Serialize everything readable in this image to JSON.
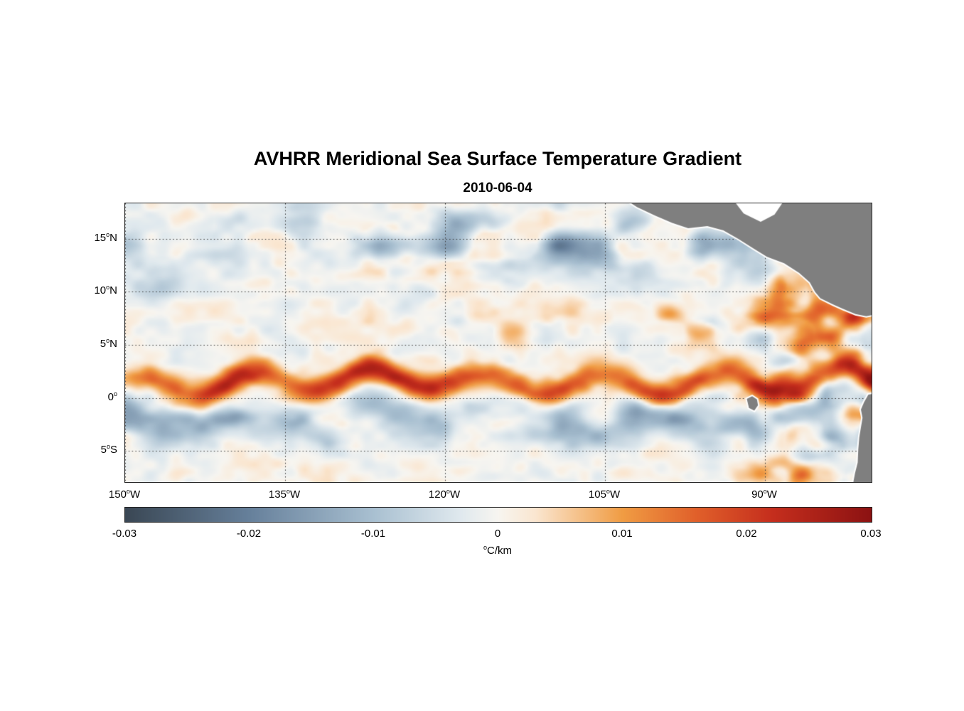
{
  "chart_data": {
    "type": "heatmap",
    "title": "AVHRR Meridional Sea Surface Temperature Gradient",
    "date": "2010-06-04",
    "degree_sup": "o",
    "lat_range": [
      -7.95,
      18.35
    ],
    "lon_range_W": [
      150,
      80
    ],
    "grid": "dotted",
    "y_ticks": [
      {
        "label": "15",
        "suffix": "N",
        "lat": 15
      },
      {
        "label": "10",
        "suffix": "N",
        "lat": 10
      },
      {
        "label": "5",
        "suffix": "N",
        "lat": 5
      },
      {
        "label": "0",
        "suffix": "",
        "lat": 0
      },
      {
        "label": "5",
        "suffix": "S",
        "lat": -5
      }
    ],
    "x_ticks": [
      {
        "label": "150",
        "suffix": "W",
        "lonW": 150
      },
      {
        "label": "135",
        "suffix": "W",
        "lonW": 135
      },
      {
        "label": "120",
        "suffix": "W",
        "lonW": 120
      },
      {
        "label": "105",
        "suffix": "W",
        "lonW": 105
      },
      {
        "label": "90",
        "suffix": "W",
        "lonW": 90
      }
    ],
    "colorbar": {
      "min": -0.03,
      "max": 0.03,
      "ticks": [
        "-0.03",
        "-0.02",
        "-0.01",
        "0",
        "0.01",
        "0.02",
        "0.03"
      ],
      "tick_values": [
        -0.03,
        -0.02,
        -0.01,
        0,
        0.01,
        0.02,
        0.03
      ],
      "unit_sup": "o",
      "unit_text": "C/km"
    },
    "colormap_stops": [
      {
        "v": -0.03,
        "c": "#3a4754"
      },
      {
        "v": -0.02,
        "c": "#66809b"
      },
      {
        "v": -0.01,
        "c": "#a9c0d1"
      },
      {
        "v": -0.003,
        "c": "#e0e9ee"
      },
      {
        "v": 0.0,
        "c": "#f7f5f0"
      },
      {
        "v": 0.003,
        "c": "#fae6d0"
      },
      {
        "v": 0.01,
        "c": "#f09c43"
      },
      {
        "v": 0.016,
        "c": "#e05f2a"
      },
      {
        "v": 0.022,
        "c": "#c52e1d"
      },
      {
        "v": 0.03,
        "c": "#8c1212"
      }
    ],
    "land_color": "#7f7f7f",
    "coast_halo_color": "#ffffff",
    "field_model": {
      "background": {
        "amp": 0.0035,
        "fine_amp": 0.0018
      },
      "equatorial_front": {
        "lat_center": 1.4,
        "meander_amp": 1.0,
        "meander_wavelength_deg": 11,
        "width_deg": 0.85,
        "peak": 0.027
      },
      "south_equatorial_band": {
        "lat_center": -2.1,
        "width_deg": 1.4,
        "peak": -0.014
      },
      "north_negative_patches": {
        "lat_center": 14.5,
        "width_deg": 2.4,
        "peak": -0.016
      },
      "necc_positive_patches": {
        "lat_center": 7.2,
        "width_deg": 1.6,
        "peak": 0.009,
        "east_of_lonW": 122
      },
      "eastern_mottle": {
        "west_of_lonW": 96,
        "amp": 0.012,
        "positive_boost": 0.006
      }
    },
    "land_polygons": {
      "central_america": [
        [
          19.5,
          104.3
        ],
        [
          18.0,
          102.0
        ],
        [
          17.2,
          100.3
        ],
        [
          16.5,
          98.7
        ],
        [
          16.0,
          97.2
        ],
        [
          16.2,
          95.4
        ],
        [
          15.8,
          93.9
        ],
        [
          15.0,
          92.5
        ],
        [
          14.1,
          91.1
        ],
        [
          13.3,
          89.8
        ],
        [
          12.7,
          88.2
        ],
        [
          11.8,
          86.8
        ],
        [
          10.9,
          85.8
        ],
        [
          10.0,
          85.3
        ],
        [
          9.4,
          84.8
        ],
        [
          8.8,
          83.6
        ],
        [
          8.4,
          82.7
        ],
        [
          7.9,
          81.5
        ],
        [
          7.7,
          80.5
        ],
        [
          8.1,
          78.5
        ],
        [
          19.5,
          78.5
        ]
      ],
      "caribbean_gap": [
        [
          19.5,
          93.6
        ],
        [
          17.4,
          92.0
        ],
        [
          16.6,
          90.4
        ],
        [
          17.3,
          89.1
        ],
        [
          19.5,
          87.6
        ]
      ],
      "galapagos": [
        [
          -0.1,
          91.7
        ],
        [
          0.15,
          91.2
        ],
        [
          -0.15,
          90.75
        ],
        [
          -0.7,
          90.65
        ],
        [
          -1.2,
          91.0
        ],
        [
          -0.95,
          91.5
        ]
      ],
      "south_america": [
        [
          0.6,
          78.5
        ],
        [
          0.3,
          80.3
        ],
        [
          -0.4,
          80.7
        ],
        [
          -1.1,
          81.0
        ],
        [
          -1.9,
          80.85
        ],
        [
          -2.8,
          81.0
        ],
        [
          -3.7,
          81.15
        ],
        [
          -4.9,
          81.25
        ],
        [
          -6.1,
          81.3
        ],
        [
          -7.1,
          81.55
        ],
        [
          -9.5,
          82.0
        ],
        [
          -9.5,
          78.5
        ]
      ]
    }
  }
}
